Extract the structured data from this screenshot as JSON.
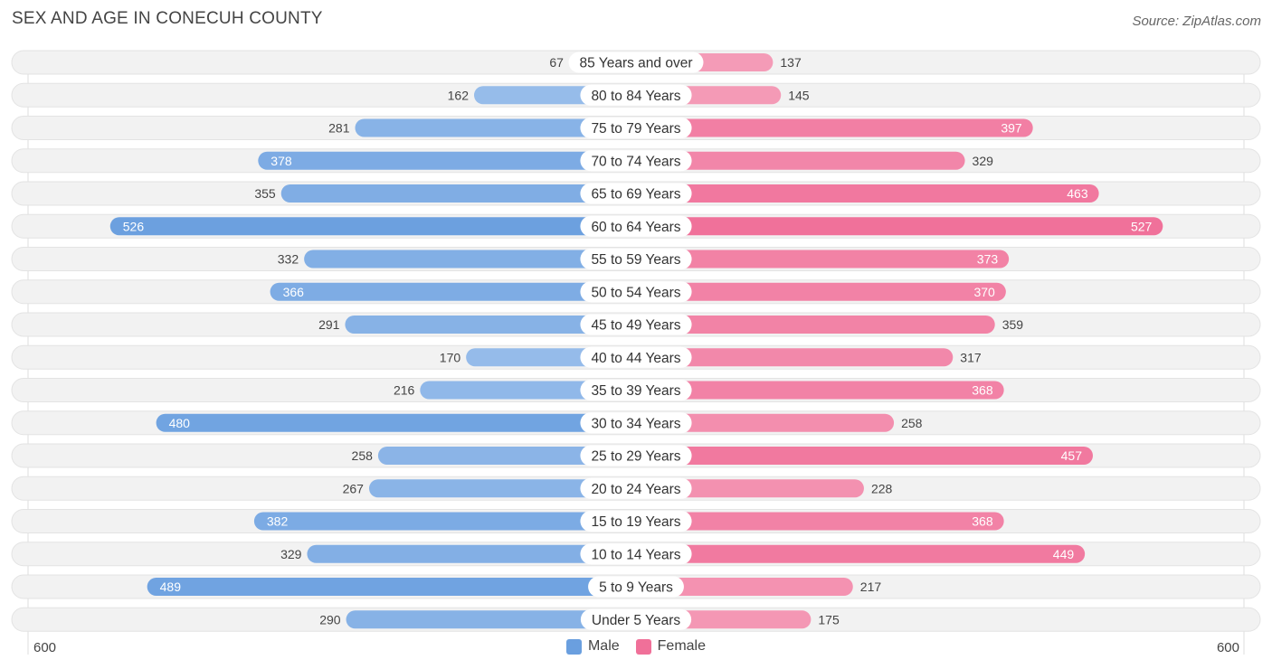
{
  "title": "SEX AND AGE IN CONECUH COUNTY",
  "source": "Source: ZipAtlas.com",
  "colors": {
    "male": "#6a9fdf",
    "male_light": "#a9c8ef",
    "female": "#f07099",
    "female_light": "#f6a9c1",
    "row_bg": "#f2f2f2"
  },
  "legend": {
    "male": "Male",
    "female": "Female"
  },
  "axis": {
    "left": "600",
    "right": "600"
  },
  "chart_data": {
    "type": "bar",
    "orientation": "horizontal-diverging",
    "title": "SEX AND AGE IN CONECUH COUNTY",
    "xlim": [
      -600,
      600
    ],
    "categories": [
      "85 Years and over",
      "80 to 84 Years",
      "75 to 79 Years",
      "70 to 74 Years",
      "65 to 69 Years",
      "60 to 64 Years",
      "55 to 59 Years",
      "50 to 54 Years",
      "45 to 49 Years",
      "40 to 44 Years",
      "35 to 39 Years",
      "30 to 34 Years",
      "25 to 29 Years",
      "20 to 24 Years",
      "15 to 19 Years",
      "10 to 14 Years",
      "5 to 9 Years",
      "Under 5 Years"
    ],
    "series": [
      {
        "name": "Male",
        "values": [
          67,
          162,
          281,
          378,
          355,
          526,
          332,
          366,
          291,
          170,
          216,
          480,
          258,
          267,
          382,
          329,
          489,
          290
        ]
      },
      {
        "name": "Female",
        "values": [
          137,
          145,
          397,
          329,
          463,
          527,
          373,
          370,
          359,
          317,
          368,
          258,
          457,
          228,
          368,
          449,
          217,
          175
        ]
      }
    ]
  }
}
